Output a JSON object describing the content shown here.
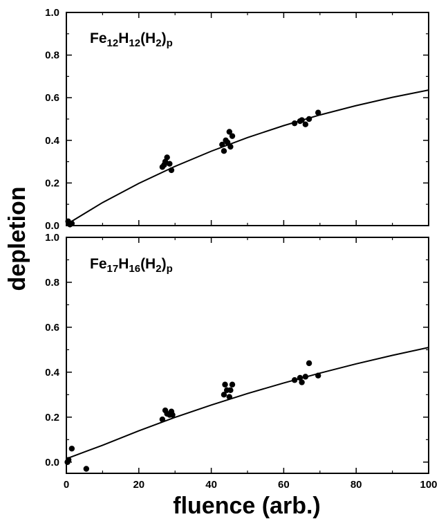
{
  "figure": {
    "ylabel": "depletion",
    "xlabel": "fluence (arb.)"
  },
  "chart_data": [
    {
      "type": "scatter",
      "panel_label": {
        "base": "Fe",
        "parts": [
          {
            "t": "Fe",
            "sub": false
          },
          {
            "t": "12",
            "sub": true
          },
          {
            "t": "H",
            "sub": false
          },
          {
            "t": "12",
            "sub": true
          },
          {
            "t": "(H",
            "sub": false
          },
          {
            "t": "2",
            "sub": true
          },
          {
            "t": ")",
            "sub": false
          },
          {
            "t": "p",
            "sub": true
          }
        ]
      },
      "xlim": [
        0,
        100
      ],
      "ylim": [
        0,
        1.0
      ],
      "x_ticks": [
        "0",
        "20",
        "40",
        "60",
        "80",
        "100"
      ],
      "y_ticks": [
        "0.0",
        "0.2",
        "0.4",
        "0.6",
        "0.8",
        "1.0"
      ],
      "x_tick_labels_shown": false,
      "points": [
        {
          "x": 0.5,
          "y": 0.02
        },
        {
          "x": 1.0,
          "y": 0.005
        },
        {
          "x": 1.5,
          "y": 0.01
        },
        {
          "x": 26.5,
          "y": 0.275
        },
        {
          "x": 27.3,
          "y": 0.3
        },
        {
          "x": 27.8,
          "y": 0.32
        },
        {
          "x": 28.5,
          "y": 0.29
        },
        {
          "x": 29.0,
          "y": 0.26
        },
        {
          "x": 27.0,
          "y": 0.285
        },
        {
          "x": 43.0,
          "y": 0.38
        },
        {
          "x": 43.5,
          "y": 0.35
        },
        {
          "x": 44.0,
          "y": 0.4
        },
        {
          "x": 44.5,
          "y": 0.39
        },
        {
          "x": 45.0,
          "y": 0.44
        },
        {
          "x": 45.3,
          "y": 0.37
        },
        {
          "x": 45.8,
          "y": 0.42
        },
        {
          "x": 63.0,
          "y": 0.48
        },
        {
          "x": 64.5,
          "y": 0.49
        },
        {
          "x": 65.0,
          "y": 0.495
        },
        {
          "x": 66.0,
          "y": 0.475
        },
        {
          "x": 67.0,
          "y": 0.5
        },
        {
          "x": 69.5,
          "y": 0.53
        }
      ],
      "fit_curve": {
        "x": [
          0,
          10,
          20,
          30,
          40,
          50,
          60,
          70,
          80,
          90,
          100
        ],
        "y": [
          0.005,
          0.108,
          0.198,
          0.278,
          0.349,
          0.413,
          0.469,
          0.519,
          0.563,
          0.602,
          0.636
        ]
      }
    },
    {
      "type": "scatter",
      "panel_label": {
        "base": "Fe",
        "parts": [
          {
            "t": "Fe",
            "sub": false
          },
          {
            "t": "17",
            "sub": true
          },
          {
            "t": "H",
            "sub": false
          },
          {
            "t": "16",
            "sub": true
          },
          {
            "t": "(H",
            "sub": false
          },
          {
            "t": "2",
            "sub": true
          },
          {
            "t": ")",
            "sub": false
          },
          {
            "t": "p",
            "sub": true
          }
        ]
      },
      "xlim": [
        0,
        100
      ],
      "ylim": [
        -0.05,
        1.0
      ],
      "x_ticks": [
        "0",
        "20",
        "40",
        "60",
        "80",
        "100"
      ],
      "y_ticks": [
        "0.0",
        "0.2",
        "0.4",
        "0.6",
        "0.8",
        "1.0"
      ],
      "x_tick_labels_shown": true,
      "points": [
        {
          "x": 0.3,
          "y": 0.0
        },
        {
          "x": 0.6,
          "y": 0.01
        },
        {
          "x": 1.5,
          "y": 0.06
        },
        {
          "x": 5.5,
          "y": -0.03
        },
        {
          "x": 26.5,
          "y": 0.19
        },
        {
          "x": 27.3,
          "y": 0.23
        },
        {
          "x": 27.8,
          "y": 0.215
        },
        {
          "x": 28.5,
          "y": 0.21
        },
        {
          "x": 29.0,
          "y": 0.225
        },
        {
          "x": 29.3,
          "y": 0.21
        },
        {
          "x": 43.5,
          "y": 0.3
        },
        {
          "x": 43.8,
          "y": 0.345
        },
        {
          "x": 44.3,
          "y": 0.32
        },
        {
          "x": 45.0,
          "y": 0.29
        },
        {
          "x": 45.3,
          "y": 0.32
        },
        {
          "x": 45.8,
          "y": 0.345
        },
        {
          "x": 63.0,
          "y": 0.365
        },
        {
          "x": 64.5,
          "y": 0.375
        },
        {
          "x": 65.0,
          "y": 0.355
        },
        {
          "x": 66.0,
          "y": 0.38
        },
        {
          "x": 67.0,
          "y": 0.44
        },
        {
          "x": 69.5,
          "y": 0.385
        }
      ],
      "fit_curve": {
        "x": [
          0,
          10,
          20,
          30,
          40,
          50,
          60,
          70,
          80,
          90,
          100
        ],
        "y": [
          0.015,
          0.075,
          0.139,
          0.199,
          0.254,
          0.305,
          0.352,
          0.396,
          0.437,
          0.475,
          0.51
        ]
      }
    }
  ]
}
